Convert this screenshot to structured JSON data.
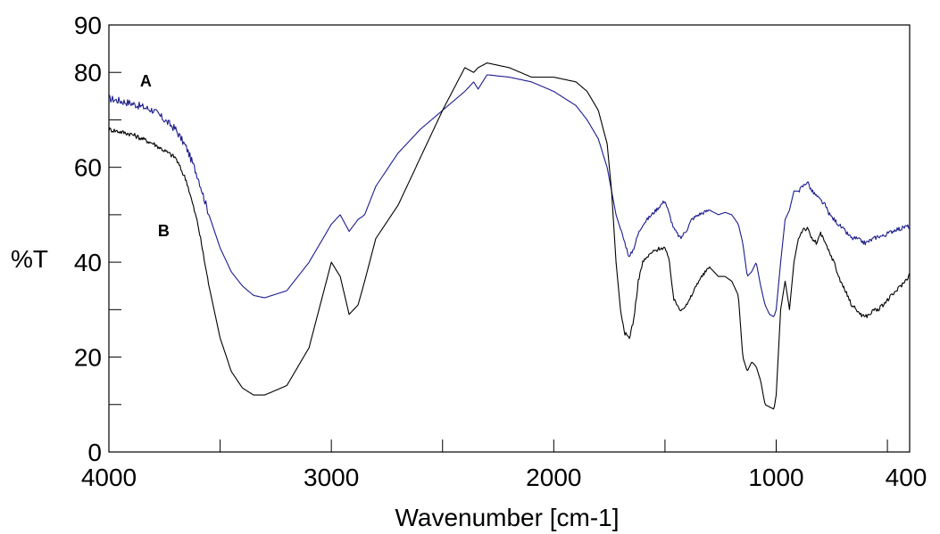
{
  "chart_data": {
    "type": "line",
    "title": "",
    "xlabel": "Wavenumber [cm-1]",
    "ylabel": "%T",
    "xlim": [
      4000,
      400
    ],
    "ylim": [
      0,
      90
    ],
    "x_reversed": true,
    "x_ticks": [
      4000,
      3000,
      2000,
      1000,
      400
    ],
    "x_tick_labels": [
      "4000",
      "3000",
      "2000",
      "1000",
      "400"
    ],
    "y_ticks": [
      0,
      20,
      40,
      60,
      80,
      90
    ],
    "y_tick_labels": [
      "0",
      "20",
      "40",
      "60",
      "80",
      "90"
    ],
    "grid": false,
    "series": [
      {
        "name": "A",
        "color": "#1c1c8c",
        "x": [
          4000,
          3900,
          3800,
          3700,
          3650,
          3600,
          3550,
          3500,
          3450,
          3400,
          3350,
          3300,
          3200,
          3100,
          3000,
          2960,
          2920,
          2880,
          2850,
          2800,
          2700,
          2600,
          2500,
          2400,
          2360,
          2340,
          2300,
          2200,
          2100,
          2000,
          1900,
          1850,
          1800,
          1760,
          1740,
          1720,
          1700,
          1680,
          1660,
          1640,
          1620,
          1600,
          1560,
          1520,
          1500,
          1480,
          1460,
          1430,
          1400,
          1380,
          1350,
          1300,
          1260,
          1230,
          1200,
          1170,
          1150,
          1130,
          1110,
          1090,
          1070,
          1050,
          1030,
          1010,
          1000,
          980,
          960,
          940,
          920,
          900,
          880,
          860,
          840,
          820,
          800,
          780,
          760,
          740,
          720,
          700,
          680,
          660,
          640,
          620,
          600,
          580,
          560,
          540,
          520,
          500,
          480,
          460,
          440,
          420,
          400
        ],
        "y": [
          74.5,
          73.5,
          72,
          68,
          64,
          58,
          50,
          43,
          38,
          35,
          33,
          32.5,
          34,
          40,
          48,
          50,
          46.5,
          49,
          50,
          56,
          63,
          68,
          72,
          76,
          78,
          76.5,
          79.5,
          79,
          78,
          76,
          73,
          70,
          66,
          60,
          55,
          50,
          47,
          44,
          41,
          43,
          46,
          48,
          50,
          52,
          53,
          50,
          47,
          45,
          47,
          49,
          50,
          51,
          50,
          50.5,
          50,
          48,
          44,
          37,
          38,
          40,
          35,
          31,
          29,
          28.5,
          30,
          40,
          49,
          51,
          55,
          55,
          56,
          57,
          55,
          54,
          53,
          52,
          50,
          49,
          48,
          47,
          46,
          45,
          45,
          44.5,
          44,
          44.5,
          45,
          45.5,
          45.5,
          46,
          46.5,
          47,
          47,
          47.5,
          47.5
        ]
      },
      {
        "name": "B",
        "color": "#000000",
        "x": [
          4000,
          3900,
          3800,
          3700,
          3650,
          3600,
          3550,
          3500,
          3450,
          3400,
          3350,
          3300,
          3200,
          3100,
          3000,
          2960,
          2920,
          2880,
          2850,
          2800,
          2700,
          2600,
          2500,
          2400,
          2360,
          2340,
          2300,
          2200,
          2100,
          2000,
          1900,
          1850,
          1800,
          1760,
          1740,
          1720,
          1700,
          1680,
          1660,
          1640,
          1620,
          1600,
          1560,
          1520,
          1500,
          1480,
          1460,
          1430,
          1400,
          1380,
          1350,
          1300,
          1260,
          1230,
          1200,
          1170,
          1150,
          1130,
          1110,
          1090,
          1070,
          1050,
          1030,
          1010,
          1000,
          980,
          960,
          940,
          920,
          900,
          880,
          860,
          840,
          820,
          800,
          780,
          760,
          740,
          720,
          700,
          680,
          660,
          640,
          620,
          600,
          580,
          560,
          540,
          520,
          500,
          480,
          460,
          440,
          420,
          400
        ],
        "y": [
          68,
          67,
          65,
          62,
          57,
          48,
          35,
          24,
          17,
          13.5,
          12,
          12,
          14,
          22,
          40,
          37,
          29,
          31,
          36,
          45,
          52,
          62,
          72,
          81,
          80,
          81,
          82,
          81,
          79,
          79,
          78,
          76,
          72,
          65,
          55,
          40,
          30,
          25,
          24,
          28,
          36,
          40,
          42,
          43,
          43,
          40,
          32,
          30,
          31,
          33,
          36,
          39,
          37,
          37,
          36,
          33,
          20,
          17,
          19,
          18,
          15,
          10,
          9.5,
          9,
          12,
          30,
          36,
          30,
          40,
          45,
          47,
          47,
          45,
          44,
          46,
          44,
          42,
          40,
          37,
          35,
          33,
          31,
          30,
          29,
          28.5,
          29,
          30,
          30,
          31,
          32,
          33,
          34,
          35,
          36,
          37.5
        ]
      }
    ],
    "annotations": [
      {
        "text": "A",
        "x": 3860,
        "y": 77
      },
      {
        "text": "B",
        "x": 3780,
        "y": 45.5
      }
    ]
  }
}
